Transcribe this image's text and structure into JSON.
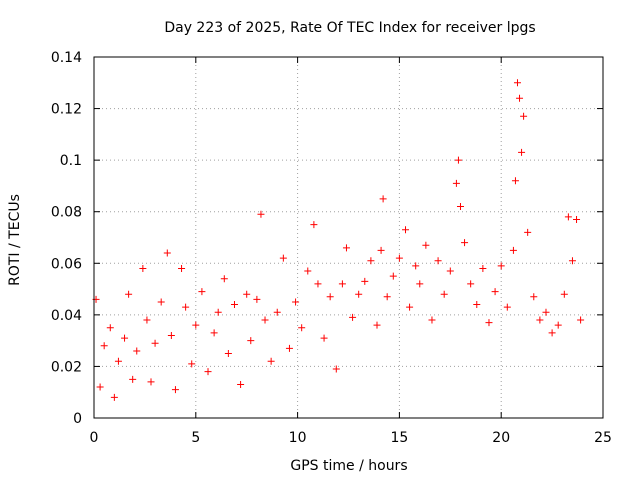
{
  "chart_data": {
    "type": "scatter",
    "title": "Day 223 of 2025, Rate Of TEC Index for receiver lpgs",
    "xlabel": "GPS time / hours",
    "ylabel": "ROTI / TECUs",
    "xlim": [
      0,
      25
    ],
    "ylim": [
      0,
      0.14
    ],
    "x_ticks": [
      {
        "value": 0,
        "label": "0"
      },
      {
        "value": 5,
        "label": "5"
      },
      {
        "value": 10,
        "label": "10"
      },
      {
        "value": 15,
        "label": "15"
      },
      {
        "value": 20,
        "label": "20"
      },
      {
        "value": 25,
        "label": "25"
      }
    ],
    "y_ticks": [
      {
        "value": 0,
        "label": "0"
      },
      {
        "value": 0.02,
        "label": "0.02"
      },
      {
        "value": 0.04,
        "label": "0.04"
      },
      {
        "value": 0.06,
        "label": "0.06"
      },
      {
        "value": 0.08,
        "label": "0.08"
      },
      {
        "value": 0.1,
        "label": "0.1"
      },
      {
        "value": 0.12,
        "label": "0.12"
      },
      {
        "value": 0.14,
        "label": "0.14"
      }
    ],
    "grid": true,
    "marker": "+",
    "marker_color": "#ff0000",
    "series": [
      {
        "name": "ROTI",
        "points": [
          [
            0.1,
            0.046
          ],
          [
            0.3,
            0.012
          ],
          [
            0.5,
            0.028
          ],
          [
            0.8,
            0.035
          ],
          [
            1.0,
            0.008
          ],
          [
            1.2,
            0.022
          ],
          [
            1.5,
            0.031
          ],
          [
            1.7,
            0.048
          ],
          [
            1.9,
            0.015
          ],
          [
            2.1,
            0.026
          ],
          [
            2.4,
            0.058
          ],
          [
            2.6,
            0.038
          ],
          [
            2.8,
            0.014
          ],
          [
            3.0,
            0.029
          ],
          [
            3.3,
            0.045
          ],
          [
            3.6,
            0.064
          ],
          [
            3.8,
            0.032
          ],
          [
            4.0,
            0.011
          ],
          [
            4.3,
            0.058
          ],
          [
            4.5,
            0.043
          ],
          [
            4.8,
            0.021
          ],
          [
            5.0,
            0.036
          ],
          [
            5.3,
            0.049
          ],
          [
            5.6,
            0.018
          ],
          [
            5.9,
            0.033
          ],
          [
            6.1,
            0.041
          ],
          [
            6.4,
            0.054
          ],
          [
            6.6,
            0.025
          ],
          [
            6.9,
            0.044
          ],
          [
            7.2,
            0.013
          ],
          [
            7.5,
            0.048
          ],
          [
            7.7,
            0.03
          ],
          [
            8.0,
            0.046
          ],
          [
            8.2,
            0.079
          ],
          [
            8.4,
            0.038
          ],
          [
            8.7,
            0.022
          ],
          [
            9.0,
            0.041
          ],
          [
            9.3,
            0.062
          ],
          [
            9.6,
            0.027
          ],
          [
            9.9,
            0.045
          ],
          [
            10.2,
            0.035
          ],
          [
            10.5,
            0.057
          ],
          [
            10.8,
            0.075
          ],
          [
            11.0,
            0.052
          ],
          [
            11.3,
            0.031
          ],
          [
            11.6,
            0.047
          ],
          [
            11.9,
            0.019
          ],
          [
            12.2,
            0.052
          ],
          [
            12.4,
            0.066
          ],
          [
            12.7,
            0.039
          ],
          [
            13.0,
            0.048
          ],
          [
            13.3,
            0.053
          ],
          [
            13.6,
            0.061
          ],
          [
            13.9,
            0.036
          ],
          [
            14.1,
            0.065
          ],
          [
            14.2,
            0.085
          ],
          [
            14.4,
            0.047
          ],
          [
            14.7,
            0.055
          ],
          [
            15.0,
            0.062
          ],
          [
            15.3,
            0.073
          ],
          [
            15.5,
            0.043
          ],
          [
            15.8,
            0.059
          ],
          [
            16.0,
            0.052
          ],
          [
            16.3,
            0.067
          ],
          [
            16.6,
            0.038
          ],
          [
            16.9,
            0.061
          ],
          [
            17.2,
            0.048
          ],
          [
            17.5,
            0.057
          ],
          [
            17.8,
            0.091
          ],
          [
            17.9,
            0.1
          ],
          [
            18.0,
            0.082
          ],
          [
            18.2,
            0.068
          ],
          [
            18.5,
            0.052
          ],
          [
            18.8,
            0.044
          ],
          [
            19.1,
            0.058
          ],
          [
            19.4,
            0.037
          ],
          [
            19.7,
            0.049
          ],
          [
            20.0,
            0.059
          ],
          [
            20.3,
            0.043
          ],
          [
            20.6,
            0.065
          ],
          [
            20.7,
            0.092
          ],
          [
            20.8,
            0.13
          ],
          [
            20.9,
            0.124
          ],
          [
            21.0,
            0.103
          ],
          [
            21.1,
            0.117
          ],
          [
            21.3,
            0.072
          ],
          [
            21.6,
            0.047
          ],
          [
            21.9,
            0.038
          ],
          [
            22.2,
            0.041
          ],
          [
            22.5,
            0.033
          ],
          [
            22.8,
            0.036
          ],
          [
            23.1,
            0.048
          ],
          [
            23.3,
            0.078
          ],
          [
            23.5,
            0.061
          ],
          [
            23.7,
            0.077
          ],
          [
            23.9,
            0.038
          ]
        ]
      }
    ]
  }
}
